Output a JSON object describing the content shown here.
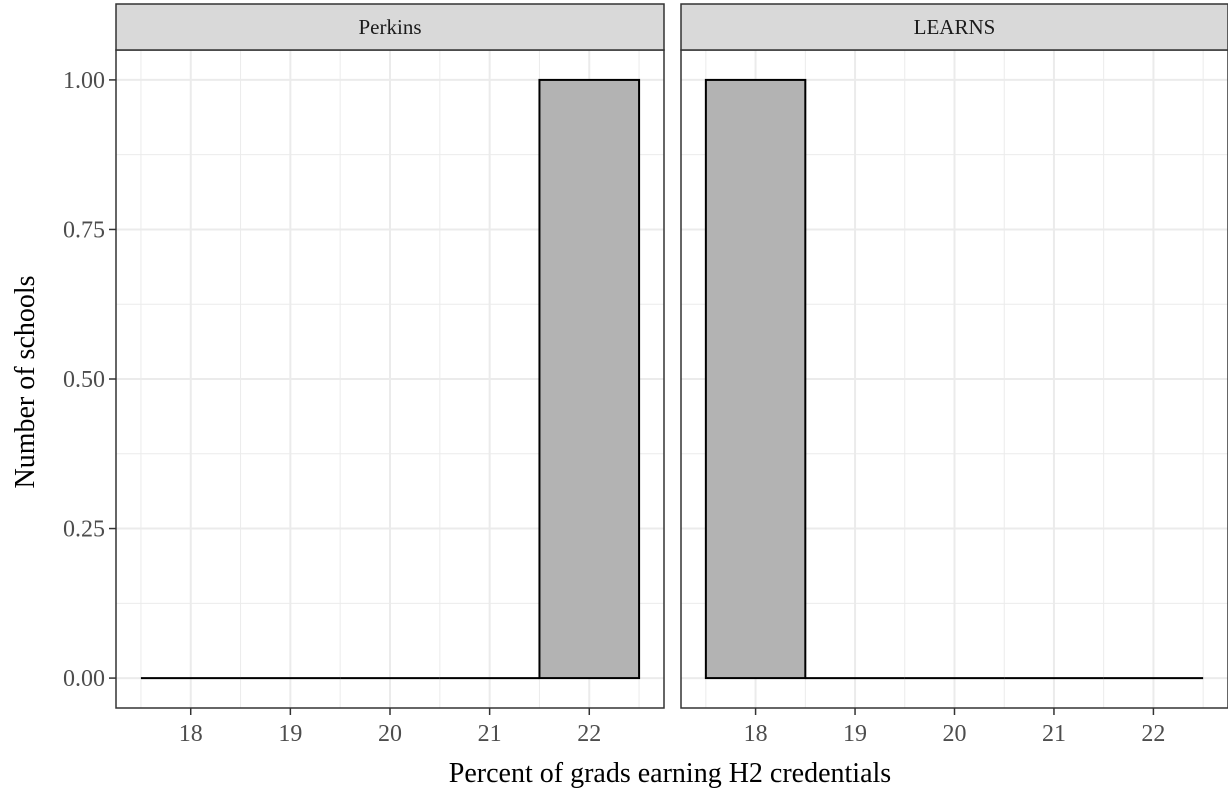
{
  "chart_data": {
    "type": "bar",
    "subtype": "histogram",
    "facet_layout": "1 row, 2 columns",
    "xlabel": "Percent of grads earning H2 credentials",
    "ylabel": "Number of schools",
    "xlim": [
      17.25,
      22.75
    ],
    "ylim": [
      -0.05,
      1.05
    ],
    "x_ticks": [
      18,
      19,
      20,
      21,
      22
    ],
    "x_tick_labels": [
      "18",
      "19",
      "20",
      "21",
      "22"
    ],
    "y_ticks": [
      0,
      0.25,
      0.5,
      0.75,
      1
    ],
    "y_tick_labels": [
      "0.00",
      "0.25",
      "0.50",
      "0.75",
      "1.00"
    ],
    "bin_width": 1,
    "grid": true,
    "bar_fill": "#b3b3b3",
    "bar_outline": "#000000",
    "strip_fill": "#d9d9d9",
    "gridline_color": "#ebebeb",
    "panels": [
      {
        "label": "Perkins",
        "bins": [
          18,
          19,
          20,
          21,
          22
        ],
        "counts": [
          0,
          0,
          0,
          0,
          1
        ]
      },
      {
        "label": "LEARNS",
        "bins": [
          18,
          19,
          20,
          21,
          22
        ],
        "counts": [
          1,
          0,
          0,
          0,
          0
        ]
      }
    ]
  }
}
